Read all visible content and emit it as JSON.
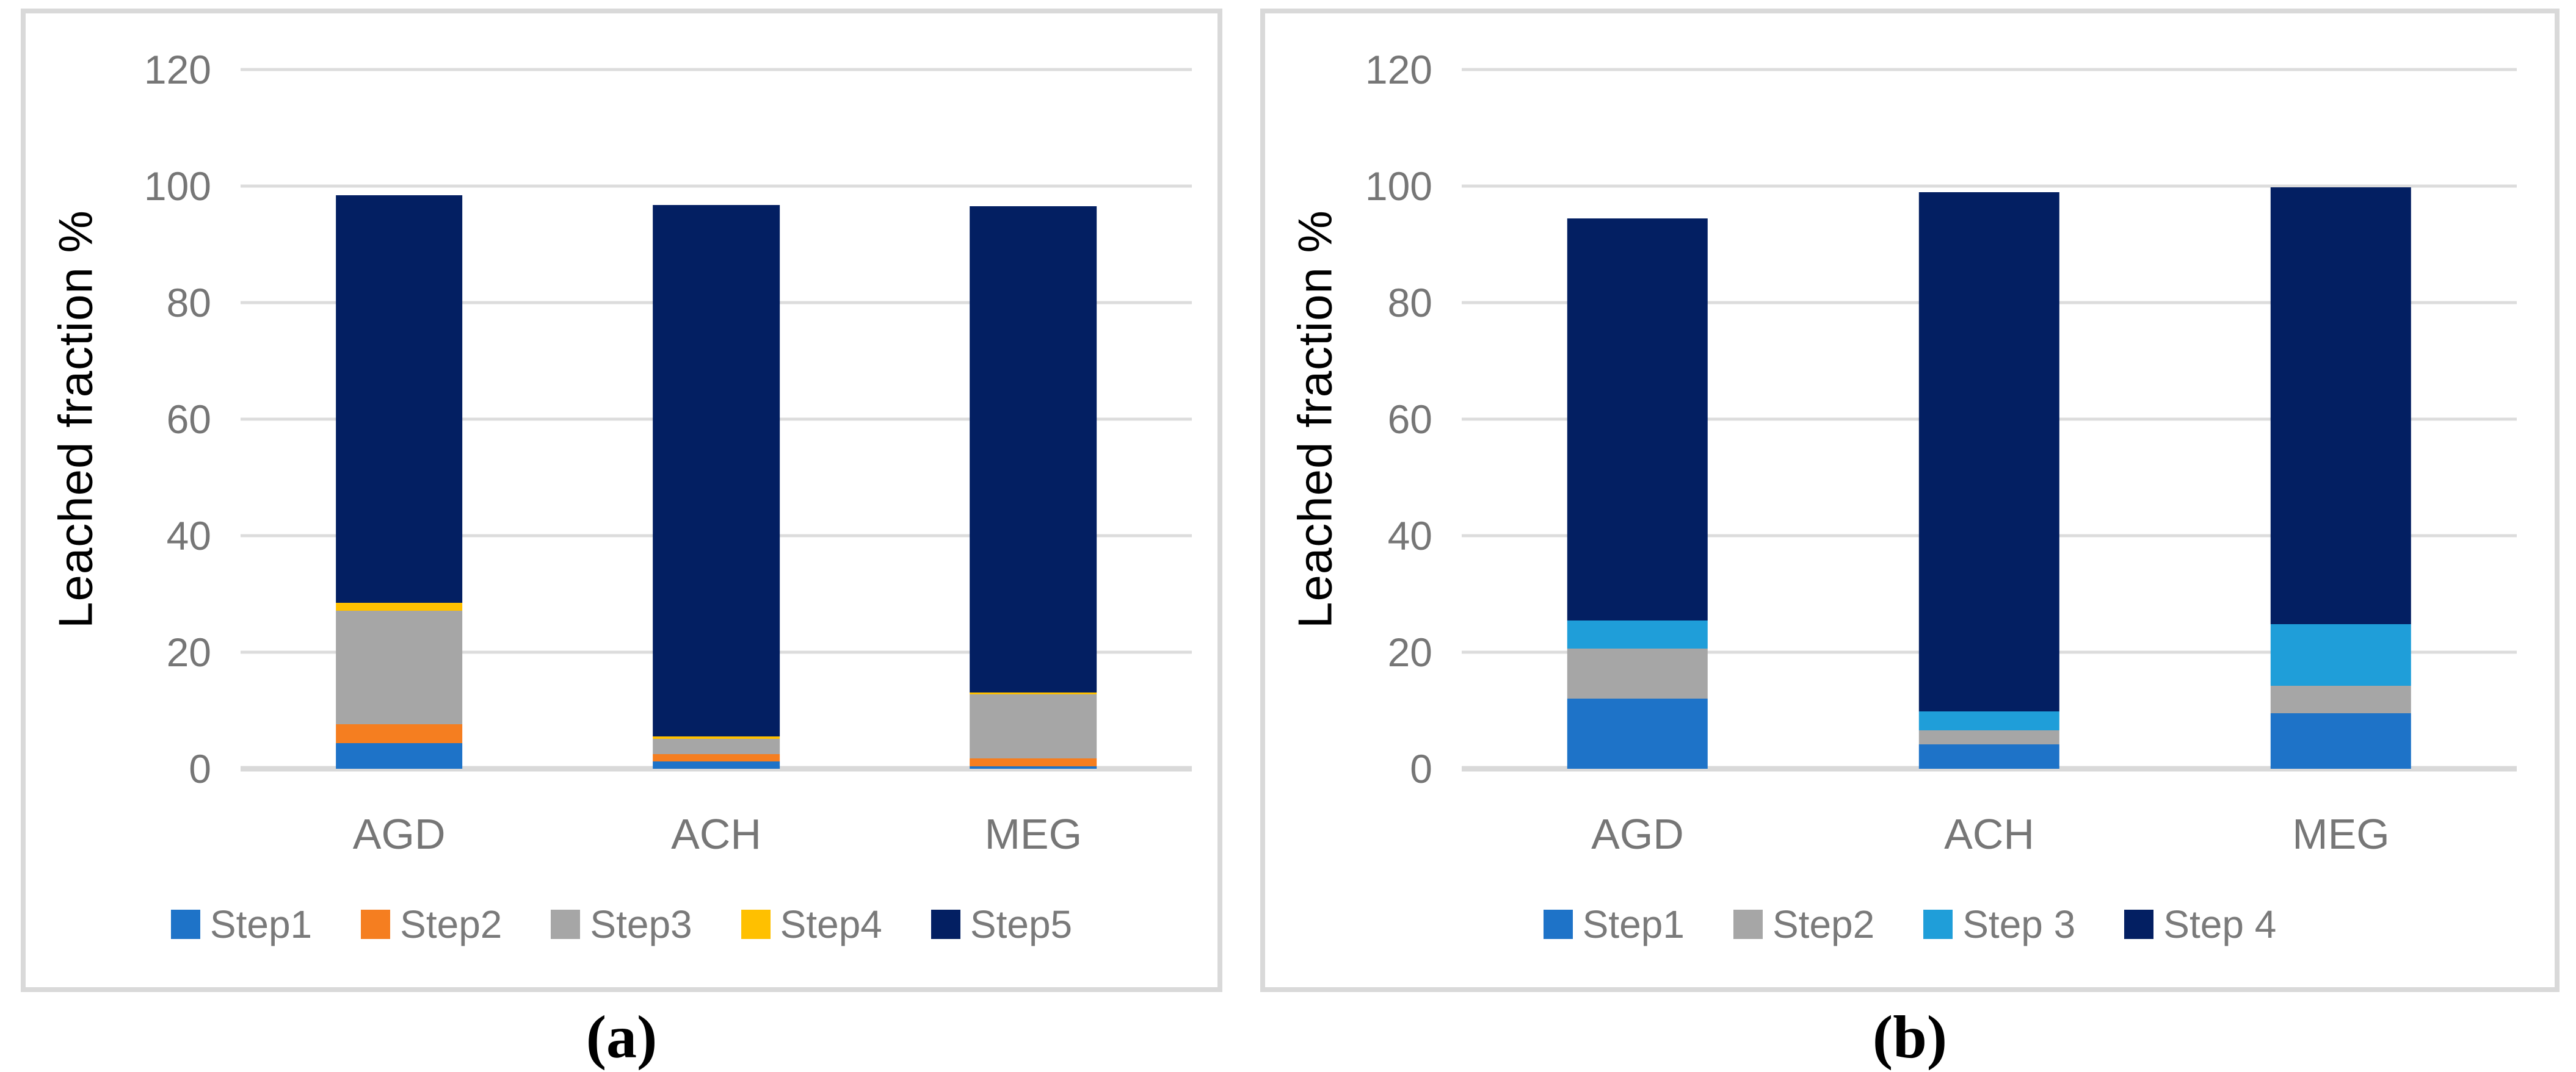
{
  "figure": {
    "panels": [
      {
        "caption": "(a)"
      },
      {
        "caption": "(b)"
      }
    ]
  },
  "colors": {
    "grid": "#dcdcdc",
    "panel_border": "#d9d9d9",
    "tick_text": "#767676",
    "legend_text": "#7a7a7a",
    "axis_title_text": "#000000"
  },
  "chart_data": [
    {
      "type": "bar",
      "stacked": true,
      "title": "",
      "xlabel": "",
      "ylabel": "Leached fraction %",
      "ylim": [
        0,
        120
      ],
      "yticks": [
        0,
        20,
        40,
        60,
        80,
        100,
        120
      ],
      "grid": true,
      "legend_position": "bottom",
      "categories": [
        "AGD",
        "ACH",
        "MEG"
      ],
      "series": [
        {
          "name": "Step1",
          "color": "#1e73c8",
          "values": [
            4.4,
            1.3,
            0.4
          ]
        },
        {
          "name": "Step2",
          "color": "#f57e20",
          "values": [
            3.2,
            1.2,
            1.4
          ]
        },
        {
          "name": "Step3",
          "color": "#a6a6a6",
          "values": [
            19.5,
            2.6,
            11.0
          ]
        },
        {
          "name": "Step4",
          "color": "#ffc000",
          "values": [
            1.4,
            0.5,
            0.3
          ]
        },
        {
          "name": "Step5",
          "color": "#031f62",
          "values": [
            69.9,
            91.2,
            83.4
          ]
        }
      ],
      "stack_totals": [
        98.4,
        96.8,
        96.5
      ]
    },
    {
      "type": "bar",
      "stacked": true,
      "title": "",
      "xlabel": "",
      "ylabel": "Leached fraction %",
      "ylim": [
        0,
        120
      ],
      "yticks": [
        0,
        20,
        40,
        60,
        80,
        100,
        120
      ],
      "grid": true,
      "legend_position": "bottom",
      "categories": [
        "AGD",
        "ACH",
        "MEG"
      ],
      "series": [
        {
          "name": "Step1",
          "color": "#1e73c8",
          "values": [
            12.0,
            4.2,
            9.5
          ]
        },
        {
          "name": "Step2",
          "color": "#a6a6a6",
          "values": [
            8.6,
            2.4,
            4.7
          ]
        },
        {
          "name": "Step 3",
          "color": "#1f9ed9",
          "values": [
            4.8,
            3.2,
            10.6
          ]
        },
        {
          "name": "Step 4",
          "color": "#031f62",
          "values": [
            69.1,
            89.2,
            75.0
          ]
        }
      ],
      "stack_totals": [
        94.5,
        99.0,
        99.8
      ]
    }
  ]
}
